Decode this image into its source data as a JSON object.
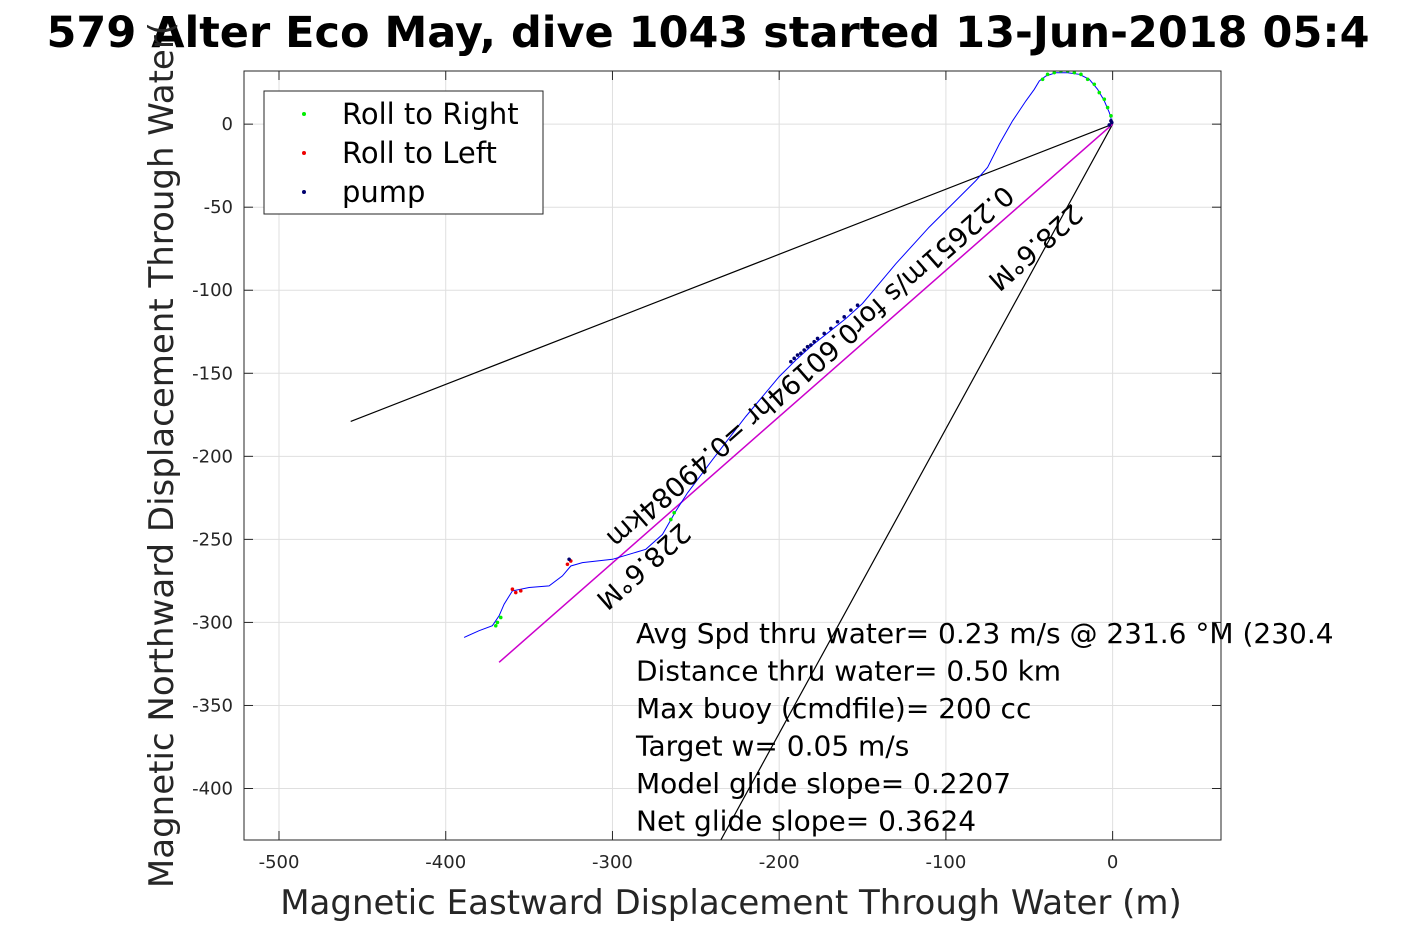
{
  "chart_data": {
    "type": "line",
    "title": "579 Alter Eco May, dive 1043 started 13-Jun-2018 05:4",
    "xlabel": "Magnetic Eastward Displacement Through Water (m)",
    "ylabel": "Magnetic Northward Displacement Through Water(",
    "xlim": [
      -521,
      65
    ],
    "ylim": [
      -431,
      32
    ],
    "xticks": [
      -500,
      -400,
      -300,
      -200,
      -100,
      0
    ],
    "yticks": [
      0,
      -50,
      -100,
      -150,
      -200,
      -250,
      -300,
      -350,
      -400
    ],
    "grid": true,
    "legend": {
      "position": "top-left",
      "entries": [
        {
          "label": "Roll to Right",
          "color": "#00ee00"
        },
        {
          "label": "Roll to Left",
          "color": "#ee0000"
        },
        {
          "label": "pump",
          "color": "#00006e"
        }
      ]
    },
    "track": {
      "color": "#0000ff",
      "points": [
        [
          0,
          0
        ],
        [
          -2,
          7
        ],
        [
          -5,
          14
        ],
        [
          -9,
          21
        ],
        [
          -14,
          27
        ],
        [
          -20,
          30
        ],
        [
          -27,
          31
        ],
        [
          -34,
          31
        ],
        [
          -40,
          29
        ],
        [
          -44,
          26
        ],
        [
          -47,
          21
        ],
        [
          -52,
          14
        ],
        [
          -60,
          2
        ],
        [
          -68,
          -12
        ],
        [
          -75,
          -26
        ],
        [
          -82,
          -34
        ],
        [
          -90,
          -42
        ],
        [
          -110,
          -62
        ],
        [
          -130,
          -84
        ],
        [
          -150,
          -108
        ],
        [
          -160,
          -117
        ],
        [
          -170,
          -125
        ],
        [
          -180,
          -133
        ],
        [
          -190,
          -142
        ],
        [
          -200,
          -152
        ],
        [
          -220,
          -176
        ],
        [
          -240,
          -202
        ],
        [
          -255,
          -222
        ],
        [
          -262,
          -233
        ],
        [
          -270,
          -247
        ],
        [
          -280,
          -256
        ],
        [
          -300,
          -262
        ],
        [
          -318,
          -264
        ],
        [
          -325,
          -266
        ],
        [
          -330,
          -272
        ],
        [
          -338,
          -278
        ],
        [
          -350,
          -279
        ],
        [
          -360,
          -281
        ],
        [
          -365,
          -289
        ],
        [
          -368,
          -296
        ],
        [
          -372,
          -302
        ],
        [
          -380,
          -305
        ],
        [
          -389,
          -309
        ]
      ]
    },
    "roll_right": [
      [
        -1,
        5
      ],
      [
        -3,
        10
      ],
      [
        -5,
        15
      ],
      [
        -8,
        19
      ],
      [
        -11,
        24
      ],
      [
        -15,
        27
      ],
      [
        -19,
        30
      ],
      [
        -23,
        31
      ],
      [
        -27,
        32
      ],
      [
        -31,
        32
      ],
      [
        -35,
        31
      ],
      [
        -39,
        30
      ],
      [
        -42,
        27
      ],
      [
        -263,
        -234
      ],
      [
        -265,
        -238
      ],
      [
        -367,
        -297
      ],
      [
        -369,
        -300
      ],
      [
        -370,
        -302
      ]
    ],
    "roll_left": [
      [
        -355,
        -281
      ],
      [
        -358,
        -282
      ],
      [
        -360,
        -280
      ],
      [
        -325,
        -263
      ],
      [
        -327,
        -265
      ]
    ],
    "pump": [
      [
        -153,
        -109
      ],
      [
        -157,
        -112
      ],
      [
        -161,
        -116
      ],
      [
        -165,
        -119
      ],
      [
        -169,
        -123
      ],
      [
        -173,
        -126
      ],
      [
        -177,
        -129
      ],
      [
        -179,
        -131
      ],
      [
        -181,
        -133
      ],
      [
        -183,
        -134
      ],
      [
        -185,
        -136
      ],
      [
        -187,
        -138
      ],
      [
        -189,
        -139
      ],
      [
        -191,
        -141
      ],
      [
        -193,
        -143
      ],
      [
        -0.5,
        1
      ],
      [
        -1,
        2
      ],
      [
        -2,
        -0.5
      ],
      [
        -326,
        -262
      ]
    ],
    "current_line": {
      "color": "#cc00cc",
      "from": [
        0,
        0
      ],
      "to": [
        -368,
        -324
      ]
    },
    "reference_lines": [
      {
        "from": [
          0,
          0
        ],
        "to": [
          -457,
          -179
        ]
      },
      {
        "from": [
          0,
          0
        ],
        "to": [
          -235,
          -431
        ]
      }
    ],
    "segment_color": "#000000",
    "annotations": [
      {
        "text": "0.22651m/s for0.60194hr =0.49084km",
        "at": [
          -185,
          -142
        ],
        "rotate": 138.6
      },
      {
        "text": "228.6°M",
        "at": [
          -50,
          -70
        ],
        "rotate": 138.6
      },
      {
        "text": "228.6°M",
        "at": [
          -285,
          -262
        ],
        "rotate": 138.6
      }
    ],
    "stats_lines": [
      "Avg Spd thru water=  0.23 m/s @ 231.6 °M (230.4",
      "Distance thru water=  0.50 km",
      "Max buoy (cmdfile)= 200 cc",
      "Target w= 0.05 m/s",
      "Model glide slope= 0.2207",
      "Net glide slope= 0.3624"
    ]
  }
}
